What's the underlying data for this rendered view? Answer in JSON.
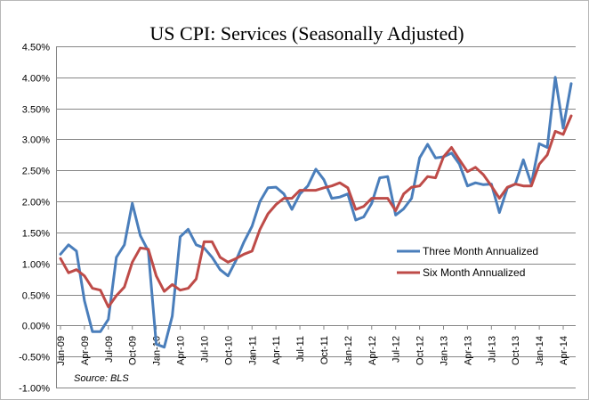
{
  "chart_data": {
    "type": "line",
    "title": "US CPI: Services (Seasonally Adjusted)",
    "xlabel": "",
    "ylabel": "",
    "source": "Source:  BLS",
    "ylim": [
      -0.01,
      0.045
    ],
    "yticks": [
      -0.01,
      -0.005,
      0.0,
      0.005,
      0.01,
      0.015,
      0.02,
      0.025,
      0.03,
      0.035,
      0.04,
      0.045
    ],
    "ytick_labels": [
      "-1.00%",
      "-0.50%",
      "0.00%",
      "0.50%",
      "1.00%",
      "1.50%",
      "2.00%",
      "2.50%",
      "3.00%",
      "3.50%",
      "4.00%",
      "4.50%"
    ],
    "x_start_label": "Jan-09",
    "x_count": 65,
    "xtick_indices": [
      0,
      3,
      6,
      9,
      12,
      15,
      18,
      21,
      24,
      27,
      30,
      33,
      36,
      39,
      42,
      45,
      48,
      51,
      54,
      57,
      60,
      63
    ],
    "xtick_labels": [
      "Jan-09",
      "Apr-09",
      "Jul-09",
      "Oct-09",
      "Jan-10",
      "Apr-10",
      "Jul-10",
      "Oct-10",
      "Jan-11",
      "Apr-11",
      "Jul-11",
      "Oct-11",
      "Jan-12",
      "Apr-12",
      "Jul-12",
      "Oct-12",
      "Jan-13",
      "Apr-13",
      "Jul-13",
      "Oct-13",
      "Jan-14",
      "Apr-14"
    ],
    "grid": true,
    "legend_position": "right",
    "series": [
      {
        "name": "Three Month Annualized",
        "color": "#4a7ebb",
        "values": [
          0.0115,
          0.013,
          0.012,
          0.004,
          -0.001,
          -0.001,
          0.001,
          0.011,
          0.013,
          0.0197,
          0.0145,
          0.012,
          -0.003,
          -0.0035,
          0.0015,
          0.0143,
          0.0155,
          0.013,
          0.0125,
          0.011,
          0.009,
          0.008,
          0.0105,
          0.0135,
          0.016,
          0.02,
          0.0222,
          0.0223,
          0.0212,
          0.0187,
          0.0212,
          0.0225,
          0.0252,
          0.0235,
          0.0205,
          0.0207,
          0.0212,
          0.017,
          0.0175,
          0.0197,
          0.0238,
          0.024,
          0.0178,
          0.0188,
          0.0205,
          0.027,
          0.0292,
          0.027,
          0.0272,
          0.0278,
          0.026,
          0.0225,
          0.023,
          0.0227,
          0.0228,
          0.0182,
          0.0222,
          0.0228,
          0.0267,
          0.0228,
          0.0293,
          0.0287,
          0.04,
          0.0318,
          0.039
        ]
      },
      {
        "name": "Six Month Annualized",
        "color": "#be4b48",
        "values": [
          0.0108,
          0.0085,
          0.009,
          0.008,
          0.006,
          0.0057,
          0.003,
          0.0048,
          0.0062,
          0.0102,
          0.0125,
          0.0123,
          0.008,
          0.0055,
          0.0066,
          0.0057,
          0.006,
          0.0075,
          0.0135,
          0.0135,
          0.011,
          0.0102,
          0.0108,
          0.0115,
          0.012,
          0.0155,
          0.018,
          0.0195,
          0.0205,
          0.0205,
          0.0218,
          0.0218,
          0.0218,
          0.0222,
          0.0225,
          0.023,
          0.0222,
          0.0187,
          0.0192,
          0.0205,
          0.0205,
          0.0205,
          0.0185,
          0.0212,
          0.0223,
          0.0225,
          0.024,
          0.0238,
          0.0272,
          0.0287,
          0.0267,
          0.0248,
          0.0255,
          0.0243,
          0.0225,
          0.0205,
          0.0223,
          0.0228,
          0.0225,
          0.0225,
          0.026,
          0.0275,
          0.0313,
          0.0308,
          0.0338
        ]
      }
    ]
  }
}
